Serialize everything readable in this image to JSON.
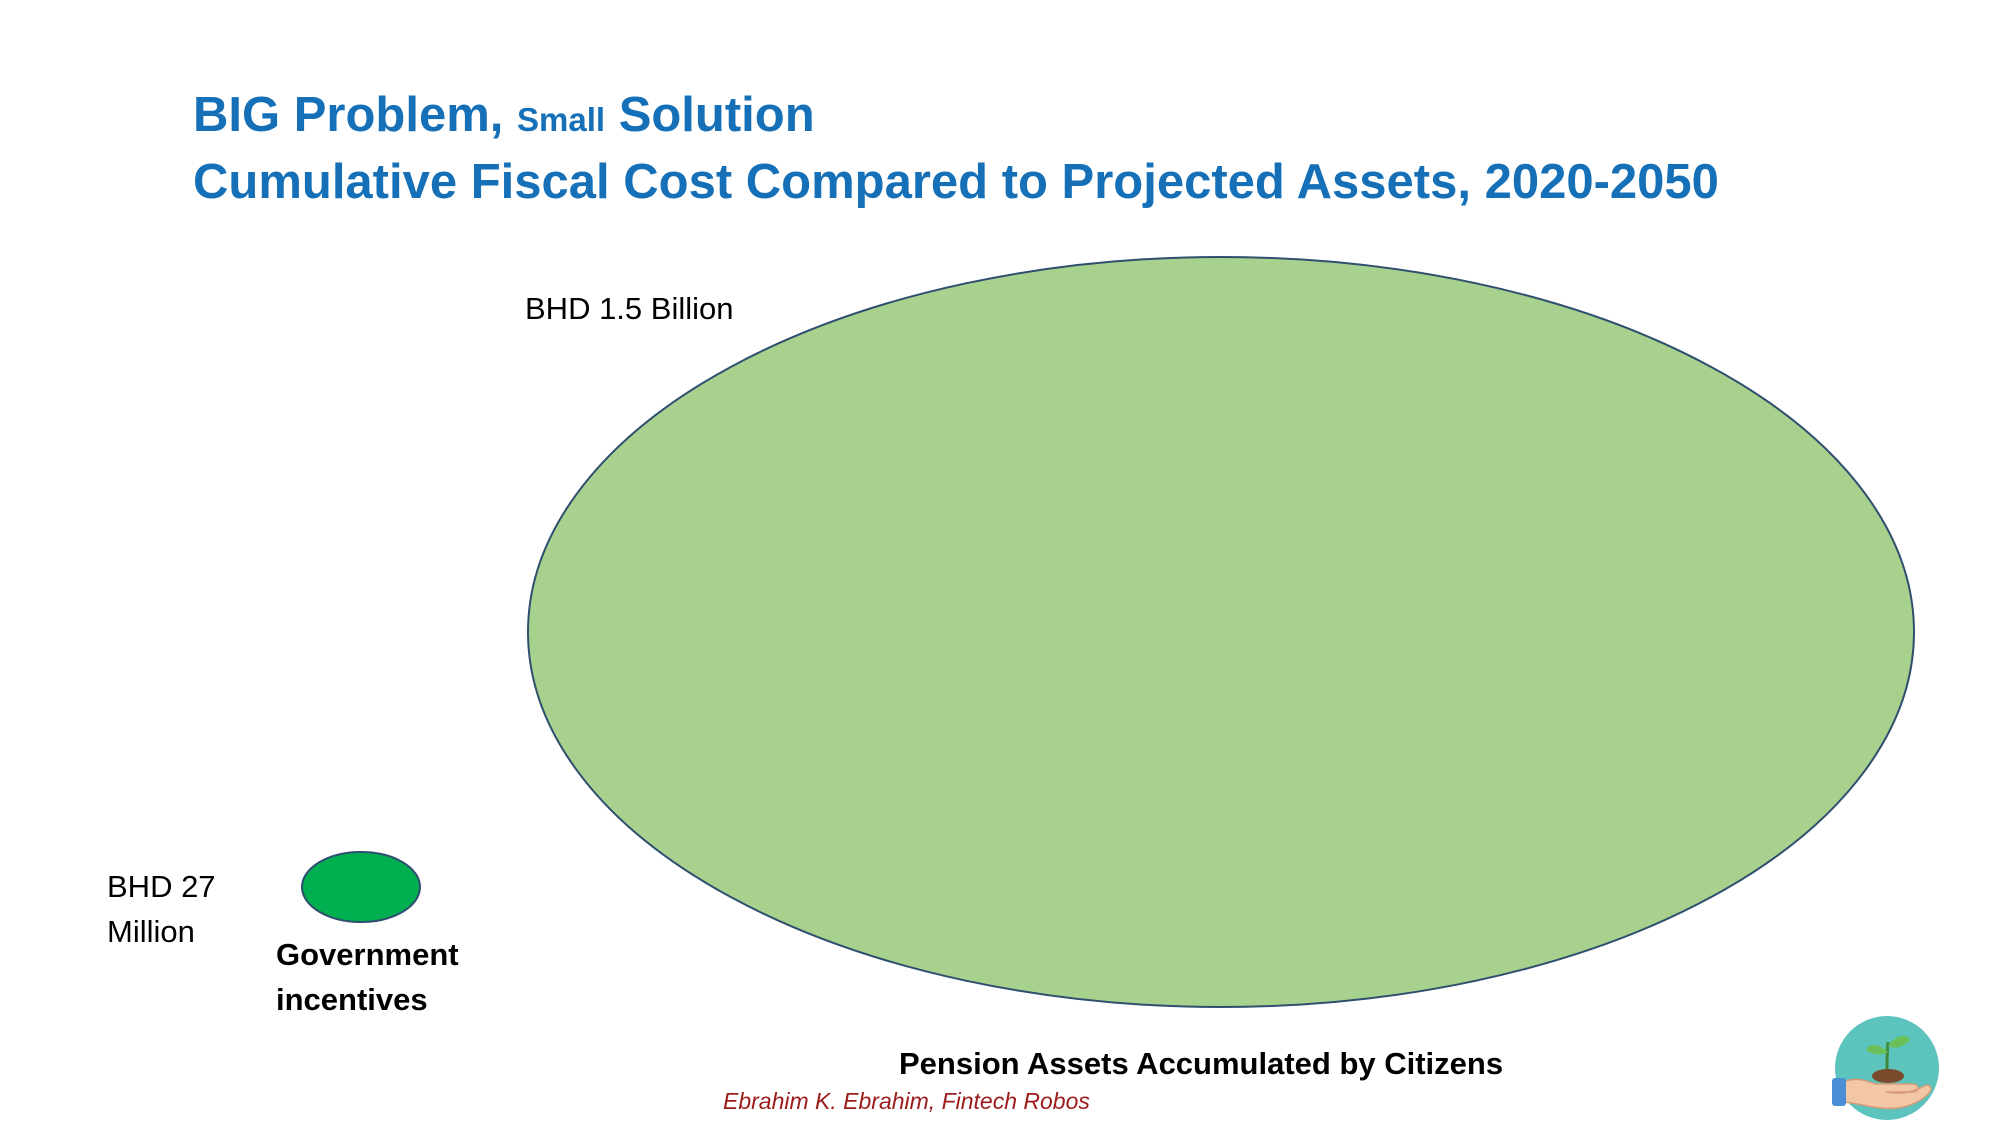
{
  "title": {
    "line1_big": "BIG Problem,",
    "line1_small": "Small",
    "line1_end": "Solution",
    "line2": "Cumulative Fiscal Cost Compared to Projected Assets, 2020-2050"
  },
  "small_bubble": {
    "value_label": "BHD 27 Million",
    "caption": "Government incentives",
    "color": "#00b050"
  },
  "big_bubble": {
    "value_label": "BHD 1.5 Billion",
    "caption": "Pension Assets Accumulated by Citizens",
    "color": "#a9d18e"
  },
  "credit": "Ebrahim K. Ebrahim, Fintech Robos",
  "logo_icon": "seedling-in-hand-icon",
  "colors": {
    "title": "#1570b8",
    "outline": "#2f4f6f",
    "credit": "#9c1b1b",
    "logo_bg": "#5cc4bd"
  }
}
